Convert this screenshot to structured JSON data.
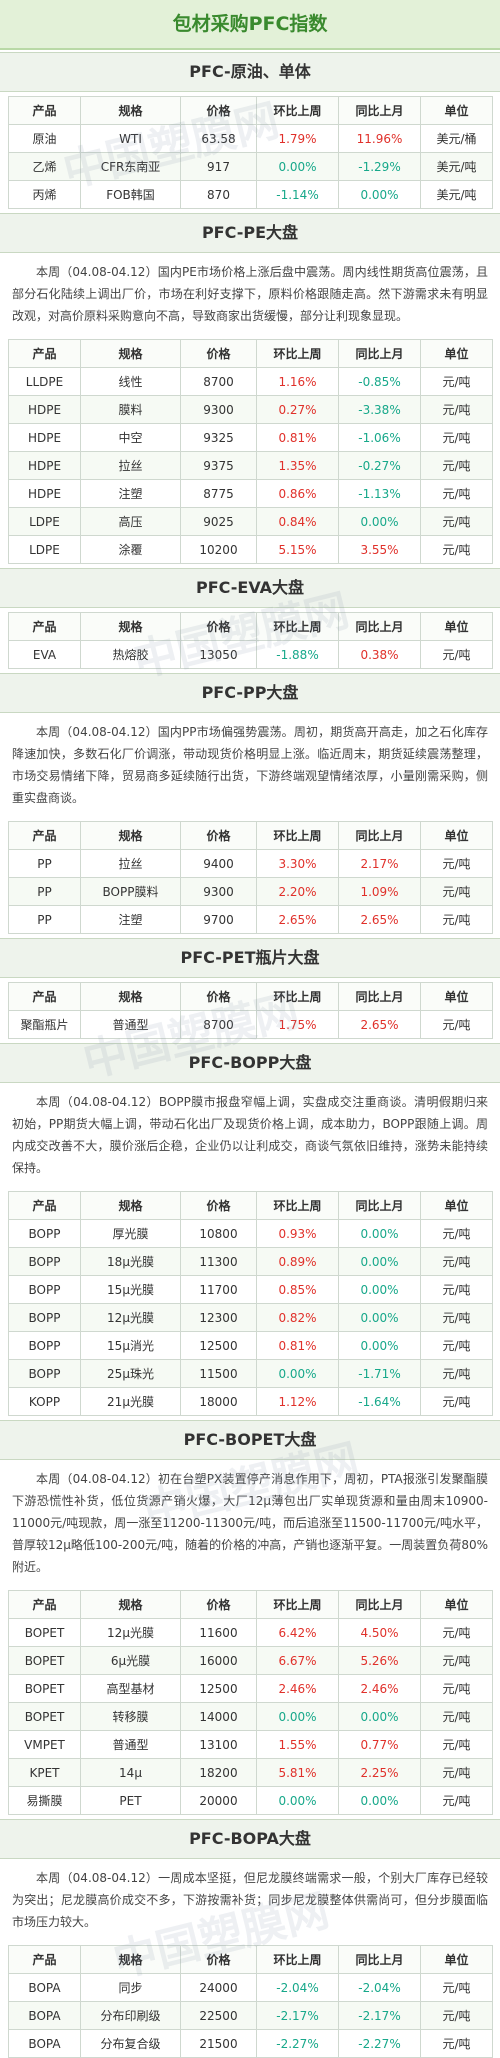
{
  "title": "包材采购PFC指数",
  "watermark": "中国塑膜网",
  "header": [
    "产品",
    "规格",
    "价格",
    "环比上周",
    "同比上月",
    "单位"
  ],
  "sections": [
    {
      "title": "PFC-原油、单体",
      "rows": [
        [
          "原油",
          "WTI",
          "63.58",
          "1.79%",
          "11.96%",
          "美元/桶"
        ],
        [
          "乙烯",
          "CFR东南亚",
          "917",
          "0.00%",
          "-1.29%",
          "美元/吨"
        ],
        [
          "丙烯",
          "FOB韩国",
          "870",
          "-1.14%",
          "0.00%",
          "美元/吨"
        ]
      ]
    },
    {
      "title": "PFC-PE大盘",
      "paragraph": "本周（04.08-04.12）国内PE市场价格上涨后盘中震荡。周内线性期货高位震荡，且部分石化陆续上调出厂价，市场在利好支撑下，原料价格跟随走高。然下游需求未有明显改观，对高价原料采购意向不高，导致商家出货缓慢，部分让利现象显现。",
      "rows": [
        [
          "LLDPE",
          "线性",
          "8700",
          "1.16%",
          "-0.85%",
          "元/吨"
        ],
        [
          "HDPE",
          "膜料",
          "9300",
          "0.27%",
          "-3.38%",
          "元/吨"
        ],
        [
          "HDPE",
          "中空",
          "9325",
          "0.81%",
          "-1.06%",
          "元/吨"
        ],
        [
          "HDPE",
          "拉丝",
          "9375",
          "1.35%",
          "-0.27%",
          "元/吨"
        ],
        [
          "HDPE",
          "注塑",
          "8775",
          "0.86%",
          "-1.13%",
          "元/吨"
        ],
        [
          "LDPE",
          "高压",
          "9025",
          "0.84%",
          "0.00%",
          "元/吨"
        ],
        [
          "LDPE",
          "涂覆",
          "10200",
          "5.15%",
          "3.55%",
          "元/吨"
        ]
      ]
    },
    {
      "title": "PFC-EVA大盘",
      "rows": [
        [
          "EVA",
          "热熔胶",
          "13050",
          "-1.88%",
          "0.38%",
          "元/吨"
        ]
      ]
    },
    {
      "title": "PFC-PP大盘",
      "paragraph": "本周（04.08-04.12）国内PP市场偏强势震荡。周初，期货高开高走，加之石化库存降速加快，多数石化厂价调涨，带动现货价格明显上涨。临近周末，期货延续震荡整理，市场交易情绪下降，贸易商多延续随行出货，下游终端观望情绪浓厚，小量刚需采购，侧重实盘商谈。",
      "rows": [
        [
          "PP",
          "拉丝",
          "9400",
          "3.30%",
          "2.17%",
          "元/吨"
        ],
        [
          "PP",
          "BOPP膜料",
          "9300",
          "2.20%",
          "1.09%",
          "元/吨"
        ],
        [
          "PP",
          "注塑",
          "9700",
          "2.65%",
          "2.65%",
          "元/吨"
        ]
      ]
    },
    {
      "title": "PFC-PET瓶片大盘",
      "rows": [
        [
          "聚酯瓶片",
          "普通型",
          "8700",
          "1.75%",
          "2.65%",
          "元/吨"
        ]
      ]
    },
    {
      "title": "PFC-BOPP大盘",
      "paragraph": "本周（04.08-04.12）BOPP膜市报盘窄幅上调，实盘成交注重商谈。清明假期归来初始，PP期货大幅上调，带动石化出厂及现货价格上调，成本助力，BOPP跟随上调。周内成交改善不大，膜价涨后企稳，企业仍以让利成交，商谈气氛依旧维持，涨势未能持续保持。",
      "rows": [
        [
          "BOPP",
          "厚光膜",
          "10800",
          "0.93%",
          "0.00%",
          "元/吨"
        ],
        [
          "BOPP",
          "18μ光膜",
          "11300",
          "0.89%",
          "0.00%",
          "元/吨"
        ],
        [
          "BOPP",
          "15μ光膜",
          "11700",
          "0.85%",
          "0.00%",
          "元/吨"
        ],
        [
          "BOPP",
          "12μ光膜",
          "12300",
          "0.82%",
          "0.00%",
          "元/吨"
        ],
        [
          "BOPP",
          "15μ消光",
          "12500",
          "0.81%",
          "0.00%",
          "元/吨"
        ],
        [
          "BOPP",
          "25μ珠光",
          "11500",
          "0.00%",
          "-1.71%",
          "元/吨"
        ],
        [
          "KOPP",
          "21μ光膜",
          "18000",
          "1.12%",
          "-1.64%",
          "元/吨"
        ]
      ]
    },
    {
      "title": "PFC-BOPET大盘",
      "paragraph": "本周（04.08-04.12）初在台塑PX装置停产消息作用下，周初，PTA报涨引发聚酯膜下游恐慌性补货，低位货源产销火爆，大厂12μ薄包出厂实单现货源和量由周末10900-11000元/吨现款，周一涨至11200-11300元/吨，而后追涨至11500-11700元/吨水平，普厚较12μ略低100-200元/吨，随着的价格的冲高，产销也逐渐平复。一周装置负荷80%附近。",
      "rows": [
        [
          "BOPET",
          "12μ光膜",
          "11600",
          "6.42%",
          "4.50%",
          "元/吨"
        ],
        [
          "BOPET",
          "6μ光膜",
          "16000",
          "6.67%",
          "5.26%",
          "元/吨"
        ],
        [
          "BOPET",
          "高型基材",
          "12500",
          "2.46%",
          "2.46%",
          "元/吨"
        ],
        [
          "BOPET",
          "转移膜",
          "14000",
          "0.00%",
          "0.00%",
          "元/吨"
        ],
        [
          "VMPET",
          "普通型",
          "13100",
          "1.55%",
          "0.77%",
          "元/吨"
        ],
        [
          "KPET",
          "14μ",
          "18200",
          "5.81%",
          "2.25%",
          "元/吨"
        ],
        [
          "易撕膜",
          "PET",
          "20000",
          "0.00%",
          "0.00%",
          "元/吨"
        ]
      ]
    },
    {
      "title": "PFC-BOPA大盘",
      "paragraph": "本周（04.08-04.12）一周成本坚挺，但尼龙膜终端需求一般，个别大厂库存已经较为突出；尼龙膜高价成交不多，下游按需补货；同步尼龙膜整体供需尚可，但分步膜面临市场压力较大。",
      "rows": [
        [
          "BOPA",
          "同步",
          "24000",
          "-2.04%",
          "-2.04%",
          "元/吨"
        ],
        [
          "BOPA",
          "分布印刷级",
          "22500",
          "-2.17%",
          "-2.17%",
          "元/吨"
        ],
        [
          "BOPA",
          "分布复合级",
          "21500",
          "-2.27%",
          "-2.27%",
          "元/吨"
        ]
      ]
    }
  ]
}
